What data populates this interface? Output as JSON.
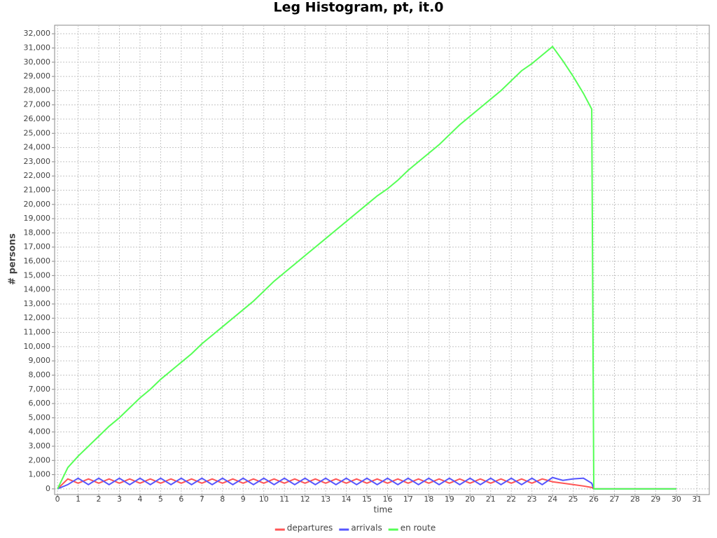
{
  "chart_data": {
    "type": "line",
    "title": "Leg Histogram, pt, it.0",
    "xlabel": "time",
    "ylabel": "# persons",
    "x": [
      0,
      0.5,
      1,
      1.5,
      2,
      2.5,
      3,
      3.5,
      4,
      4.5,
      5,
      5.5,
      6,
      6.5,
      7,
      7.5,
      8,
      8.5,
      9,
      9.5,
      10,
      10.5,
      11,
      11.5,
      12,
      12.5,
      13,
      13.5,
      14,
      14.5,
      15,
      15.5,
      16,
      16.5,
      17,
      17.5,
      18,
      18.5,
      19,
      19.5,
      20,
      20.5,
      21,
      21.5,
      22,
      22.5,
      23,
      23.5,
      24,
      24.5,
      25,
      25.5,
      25.9,
      26,
      26.5,
      27,
      27.5,
      28,
      28.5,
      29,
      29.5,
      30
    ],
    "series": [
      {
        "name": "departures",
        "color": "#ff5555",
        "values": [
          0,
          700,
          400,
          700,
          400,
          700,
          400,
          700,
          400,
          700,
          400,
          700,
          400,
          700,
          400,
          700,
          400,
          700,
          400,
          700,
          400,
          700,
          400,
          700,
          400,
          700,
          400,
          700,
          400,
          700,
          400,
          700,
          400,
          700,
          400,
          700,
          400,
          700,
          400,
          700,
          400,
          700,
          400,
          700,
          400,
          700,
          400,
          700,
          500,
          400,
          300,
          200,
          100,
          0,
          0,
          0,
          0,
          0,
          0,
          0,
          0,
          0
        ]
      },
      {
        "name": "arrivals",
        "color": "#5555ff",
        "values": [
          0,
          300,
          750,
          300,
          750,
          300,
          750,
          300,
          750,
          300,
          750,
          300,
          750,
          300,
          750,
          300,
          750,
          300,
          750,
          300,
          750,
          300,
          750,
          300,
          750,
          300,
          750,
          300,
          750,
          300,
          750,
          300,
          750,
          300,
          750,
          300,
          750,
          300,
          750,
          300,
          750,
          300,
          750,
          300,
          750,
          300,
          750,
          300,
          800,
          600,
          700,
          750,
          400,
          0,
          0,
          0,
          0,
          0,
          0,
          0,
          0,
          0
        ]
      },
      {
        "name": "en route",
        "color": "#55ff55",
        "values": [
          0,
          1500,
          2300,
          3000,
          3700,
          4400,
          5000,
          5700,
          6400,
          7000,
          7700,
          8300,
          8900,
          9500,
          10200,
          10800,
          11400,
          12000,
          12600,
          13200,
          13900,
          14600,
          15200,
          15800,
          16400,
          17000,
          17600,
          18200,
          18800,
          19400,
          20000,
          20600,
          21100,
          21700,
          22400,
          23000,
          23600,
          24200,
          24900,
          25600,
          26200,
          26800,
          27400,
          28000,
          28700,
          29400,
          29900,
          30500,
          31100,
          30100,
          29000,
          27800,
          26700,
          0,
          0,
          0,
          0,
          0,
          0,
          0,
          0,
          0
        ]
      }
    ],
    "xlim": [
      -0.14,
      31.6
    ],
    "ylim": [
      -400,
      32600
    ],
    "xticks": [
      0,
      1,
      2,
      3,
      4,
      5,
      6,
      7,
      8,
      9,
      10,
      11,
      12,
      13,
      14,
      15,
      16,
      17,
      18,
      19,
      20,
      21,
      22,
      23,
      24,
      25,
      26,
      27,
      28,
      29,
      30,
      31
    ],
    "yticks": [
      0,
      {
        "value": 1000,
        "label": "1,000"
      },
      {
        "value": 2000,
        "label": "2,000"
      },
      {
        "value": 3000,
        "label": "3,000"
      },
      {
        "value": 4000,
        "label": "4,000"
      },
      {
        "value": 5000,
        "label": "5,000"
      },
      {
        "value": 6000,
        "label": "6,000"
      },
      {
        "value": 7000,
        "label": "7,000"
      },
      {
        "value": 8000,
        "label": "8,000"
      },
      {
        "value": 9000,
        "label": "9,000"
      },
      {
        "value": 10000,
        "label": "10,000"
      },
      {
        "value": 11000,
        "label": "11,000"
      },
      {
        "value": 12000,
        "label": "12,000"
      },
      {
        "value": 13000,
        "label": "13,000"
      },
      {
        "value": 14000,
        "label": "14,000"
      },
      {
        "value": 15000,
        "label": "15,000"
      },
      {
        "value": 16000,
        "label": "16,000"
      },
      {
        "value": 17000,
        "label": "17,000"
      },
      {
        "value": 18000,
        "label": "18,000"
      },
      {
        "value": 19000,
        "label": "19,000"
      },
      {
        "value": 20000,
        "label": "20,000"
      },
      {
        "value": 21000,
        "label": "21,000"
      },
      {
        "value": 22000,
        "label": "22,000"
      },
      {
        "value": 23000,
        "label": "23,000"
      },
      {
        "value": 24000,
        "label": "24,000"
      },
      {
        "value": 25000,
        "label": "25,000"
      },
      {
        "value": 26000,
        "label": "26,000"
      },
      {
        "value": 27000,
        "label": "27,000"
      },
      {
        "value": 28000,
        "label": "28,000"
      },
      {
        "value": 29000,
        "label": "29,000"
      },
      {
        "value": 30000,
        "label": "30,000"
      },
      {
        "value": 31000,
        "label": "31,000"
      },
      {
        "value": 32000,
        "label": "32,000"
      }
    ],
    "grid": true,
    "legend": "bottom"
  }
}
